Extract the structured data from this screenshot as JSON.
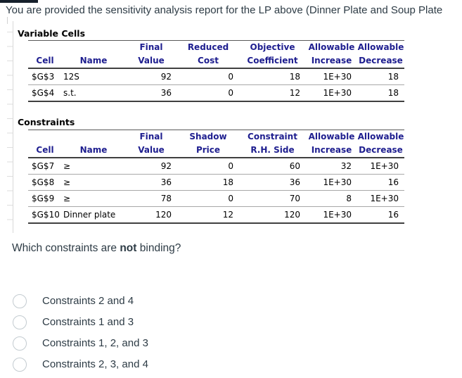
{
  "page": {
    "intro": "You are provided the sensitivity analysis report for the LP above (Dinner Plate and Soup Plate",
    "question": {
      "prefix": "Which constraints are ",
      "bold_word": "not",
      "suffix": " binding?"
    }
  },
  "report": {
    "variable_cells": {
      "title": "Variable Cells",
      "header_row1": [
        "",
        "",
        "Final",
        "Reduced",
        "Objective",
        "Allowable",
        "Allowable"
      ],
      "header_row2": [
        "Cell",
        "Name",
        "Value",
        "Cost",
        "Coefficient",
        "Increase",
        "Decrease"
      ],
      "rows": [
        [
          "$G$3",
          "12S",
          "92",
          "0",
          "18",
          "1E+30",
          "18"
        ],
        [
          "$G$4",
          "s.t.",
          "36",
          "0",
          "12",
          "1E+30",
          "18"
        ]
      ]
    },
    "constraints": {
      "title": "Constraints",
      "header_row1": [
        "",
        "",
        "Final",
        "Shadow",
        "Constraint",
        "Allowable",
        "Allowable"
      ],
      "header_row2": [
        "Cell",
        "Name",
        "Value",
        "Price",
        "R.H. Side",
        "Increase",
        "Decrease"
      ],
      "rows": [
        [
          "$G$7",
          "≥",
          "92",
          "0",
          "60",
          "32",
          "1E+30"
        ],
        [
          "$G$8",
          "≥",
          "36",
          "18",
          "36",
          "1E+30",
          "16"
        ],
        [
          "$G$9",
          "≥",
          "78",
          "0",
          "70",
          "8",
          "1E+30"
        ],
        [
          "$G$10",
          "Dinner plate",
          "120",
          "12",
          "120",
          "1E+30",
          "16"
        ]
      ]
    }
  },
  "options": [
    {
      "label": "Constraints 2 and 4",
      "selected": false
    },
    {
      "label": "Constraints 1 and 3",
      "selected": false
    },
    {
      "label": "Constraints 1, 2, and 3",
      "selected": false
    },
    {
      "label": "Constraints 2, 3, and 4",
      "selected": false
    }
  ],
  "colors": {
    "header_text": "#1e1e8f",
    "line_dark": "#404040",
    "line_light": "#a8a8a8",
    "radio_border": "#c3cbd0",
    "body_text": "#2d3b45",
    "topbar": "#16202b",
    "gridline": "#d8d8d8"
  }
}
